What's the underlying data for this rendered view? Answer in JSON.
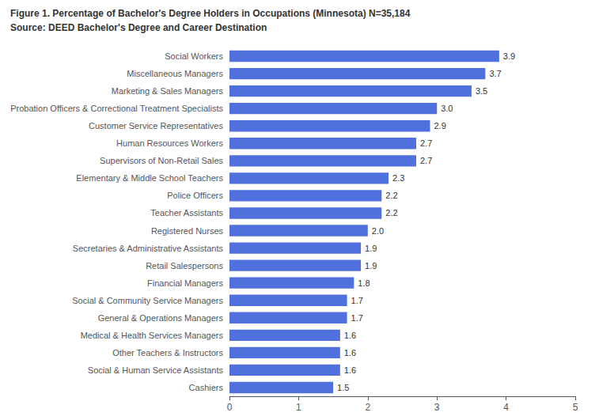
{
  "chart_data": {
    "type": "bar",
    "orientation": "horizontal",
    "title": "Figure 1. Percentage of Bachelor's Degree Holders in Occupations (Minnesota) N=35,184",
    "subtitle": "Source: DEED Bachelor's Degree and Career Destination",
    "categories": [
      "Cashiers",
      "Social & Human Service Assistants",
      "Other Teachers & Instructors",
      "Medical & Health Services Managers",
      "General & Operations Managers",
      "Social & Community Service Managers",
      "Financial Managers",
      "Retail Salespersons",
      "Secretaries & Administrative Assistants",
      "Registered Nurses",
      "Teacher Assistants",
      "Police Officers",
      "Elementary & Middle School Teachers",
      "Supervisors of Non-Retail Sales",
      "Human Resources Workers",
      "Customer Service Representatives",
      "Probation Officers & Correctional Treatment Specialists",
      "Marketing & Sales Managers",
      "Miscellaneous Managers",
      "Social Workers"
    ],
    "values": [
      1.5,
      1.6,
      1.6,
      1.6,
      1.7,
      1.7,
      1.8,
      1.9,
      1.9,
      2.0,
      2.2,
      2.2,
      2.3,
      2.7,
      2.7,
      2.9,
      3.0,
      3.5,
      3.7,
      3.9
    ],
    "value_labels": [
      "1.5",
      "1.6",
      "1.6",
      "1.6",
      "1.7",
      "1.7",
      "1.8",
      "1.9",
      "1.9",
      "2.0",
      "2.2",
      "2.2",
      "2.3",
      "2.7",
      "2.7",
      "2.9",
      "3.0",
      "3.5",
      "3.7",
      "3.9"
    ],
    "data_labels": true,
    "xlim": [
      0,
      5
    ],
    "xticks": [
      0,
      1,
      2,
      3,
      4,
      5
    ],
    "grid": false
  }
}
